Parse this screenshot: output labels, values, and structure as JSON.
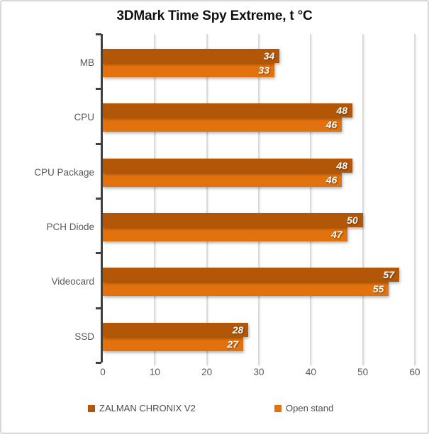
{
  "chart_data": {
    "type": "bar",
    "orientation": "horizontal",
    "title": "3DMark Time Spy Extreme, t °C",
    "categories": [
      "MB",
      "CPU",
      "CPU Package",
      "PCH Diode",
      "Videocard",
      "SSD"
    ],
    "series": [
      {
        "name": "ZALMAN CHRONIX V2",
        "color": "#B25608",
        "values": [
          34,
          48,
          48,
          50,
          57,
          28
        ]
      },
      {
        "name": "Open stand",
        "color": "#E2720D",
        "values": [
          33,
          46,
          46,
          47,
          55,
          27
        ]
      }
    ],
    "xlim": [
      0,
      60
    ],
    "xticks": [
      0,
      10,
      20,
      30,
      40,
      50,
      60
    ],
    "grid": true,
    "legend_position": "bottom",
    "value_labels": "inside-end",
    "value_label_color": "#FFFFFF"
  },
  "colors": {
    "axis_line": "#404040",
    "gridline": "#D9D9D9",
    "axis_text": "#595959",
    "title_text": "#111111",
    "frame_border": "#D8D8D8",
    "background": "#FFFFFF"
  }
}
